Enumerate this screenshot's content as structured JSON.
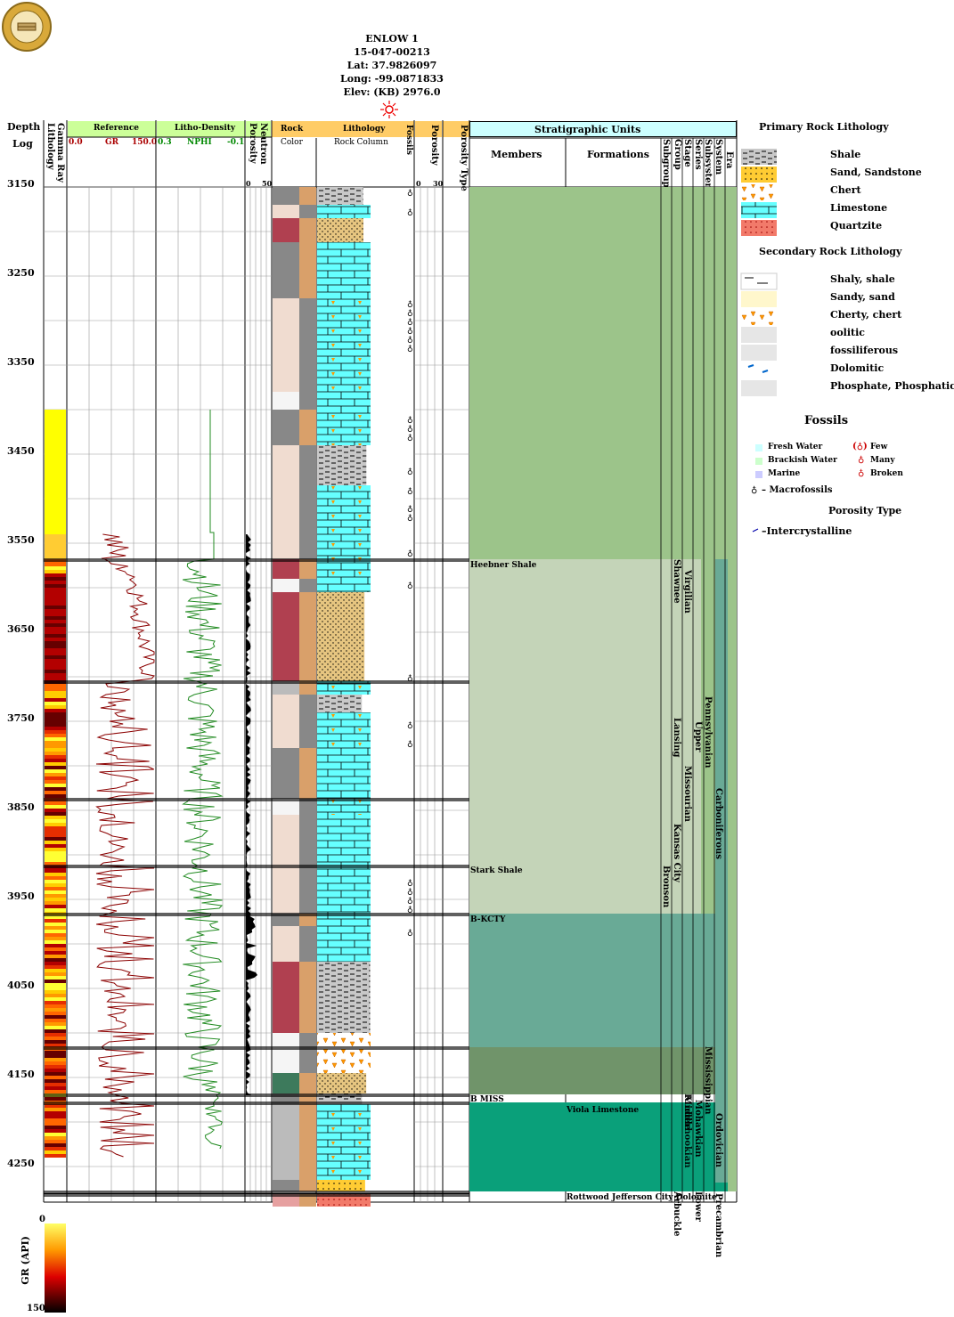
{
  "well": {
    "name": "ENLOW 1",
    "api": "15-047-00213",
    "lat": "Lat: 37.9826097",
    "long": "Long: -99.0871833",
    "elev": "Elev: (KB) 2976.0"
  },
  "headers": {
    "depth": "Depth",
    "log": "Log",
    "lithology": "Lithology",
    "gamma_ray": "Gamma Ray",
    "reference": "Reference",
    "gr_min": "0.0",
    "gr_name": "GR",
    "gr_max": "150.0",
    "litho_density": "Litho-Density",
    "nphi_min": "0.3",
    "nphi_name": "NPHI",
    "nphi_max": "-0.1",
    "porosity": "Porosity",
    "neutron": "Neutron",
    "neutron_min": "0",
    "neutron_max": "50",
    "rock": "Rock",
    "color": "Color",
    "lithology_col": "Lithology",
    "rock_column": "Rock Column",
    "fossils": "Fossils",
    "porosity2": "Porosity",
    "por_min": "0",
    "por_max": "30",
    "porosity_type": "Porosity Type",
    "strat_units": "Stratigraphic Units",
    "members": "Members",
    "formations": "Formations",
    "subgroup": "Subgroup",
    "group": "Group",
    "stage": "Stage",
    "series": "Series",
    "subsystem": "Subsystem",
    "system": "System",
    "era": "Era"
  },
  "depth_labels": [
    "3150",
    "3250",
    "3350",
    "3450",
    "3550",
    "3650",
    "3750",
    "3850",
    "3950",
    "4050",
    "4150",
    "4250"
  ],
  "strat_labels": {
    "heebner": "Heebner Shale",
    "stark": "Stark Shale",
    "bkcty": "B-KCTY",
    "bmiss": "B MISS",
    "viola": "Viola Limestone",
    "rottwood": "Rottwood Jefferson City Dolomite",
    "shawnee": "Shawnee",
    "virgilian": "Virgilian",
    "lansing": "Lansing",
    "upper": "Upper",
    "pennsylvanian": "Pennsylvanian",
    "missourian": "Missourian",
    "kansas_city": "Kansas City",
    "carboniferous": "Carboniferous",
    "bronson": "Bronson",
    "mississippian": "Mississippian",
    "mohawkian": "Mohawkian",
    "middle": "Middle",
    "kinderhookian": "Kinderhookian",
    "ordovician": "Ordovician",
    "lower": "Lower",
    "arbuckle": "Arbuckle",
    "precambrian": "Precambrian"
  },
  "legend": {
    "primary_title": "Primary Rock Lithology",
    "primary": [
      "Shale",
      "Sand, Sandstone",
      "Chert",
      "Limestone",
      "Quartzite"
    ],
    "secondary_title": "Secondary Rock Lithology",
    "secondary": [
      "Shaly, shale",
      "Sandy, sand",
      "Cherty, chert",
      "oolitic",
      "fossiliferous",
      "Dolomitic",
      "Phosphate, Phosphatic"
    ],
    "fossils_title": "Fossils",
    "fresh": "Fresh Water",
    "brackish": "Brackish Water",
    "marine": "Marine",
    "few": "Few",
    "many": "Many",
    "broken": "Broken",
    "macro": "– Macrofossils",
    "porosity_type_title": "Porosity Type",
    "intercrystalline": "–Intercrystalline"
  },
  "gr_scale": {
    "label": "GR (API)",
    "min": "0",
    "max": "150"
  },
  "colors": {
    "header_green": "#ccff99",
    "header_orange": "#ffcc66",
    "header_cyan": "#ccffff",
    "limestone": "#66ffff",
    "sandstone": "#ffcc33",
    "shale": "#cccccc",
    "strat_green": "#9cc48a",
    "strat_sage": "#c4d4b8",
    "strat_teal": "#69aa96",
    "strat_dark": "#70946a",
    "strat_deep": "#0aa07a"
  }
}
